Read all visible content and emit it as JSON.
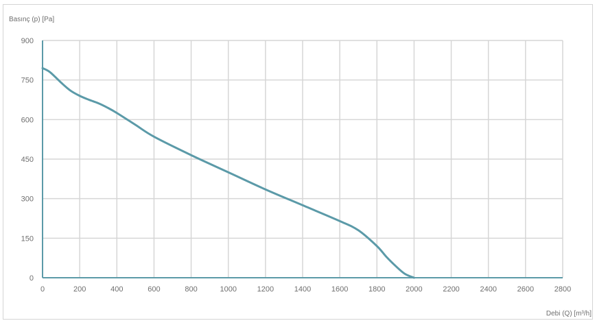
{
  "chart_data": {
    "type": "line",
    "ylabel": "Basınç (p) [Pa]",
    "xlabel": "Debi (Q) [m³/h]",
    "xlim": [
      0,
      2800
    ],
    "ylim": [
      0,
      900
    ],
    "x_ticks": [
      0,
      200,
      400,
      600,
      800,
      1000,
      1200,
      1400,
      1600,
      1800,
      2000,
      2200,
      2400,
      2600,
      2800
    ],
    "y_ticks": [
      0,
      150,
      300,
      450,
      600,
      750,
      900
    ],
    "grid": true,
    "colors": {
      "line": "#5b9aa8",
      "grid": "#d6d6d6",
      "axis": "#5b9aa8"
    },
    "series": [
      {
        "x": [
          0,
          40,
          100,
          150,
          200,
          250,
          300,
          350,
          400,
          500,
          600,
          800,
          1000,
          1200,
          1400,
          1600,
          1700,
          1800,
          1850,
          1900,
          1950,
          2000
        ],
        "values": [
          795,
          780,
          740,
          710,
          690,
          675,
          662,
          645,
          625,
          580,
          535,
          465,
          400,
          335,
          275,
          215,
          180,
          120,
          80,
          45,
          15,
          0
        ]
      }
    ]
  }
}
